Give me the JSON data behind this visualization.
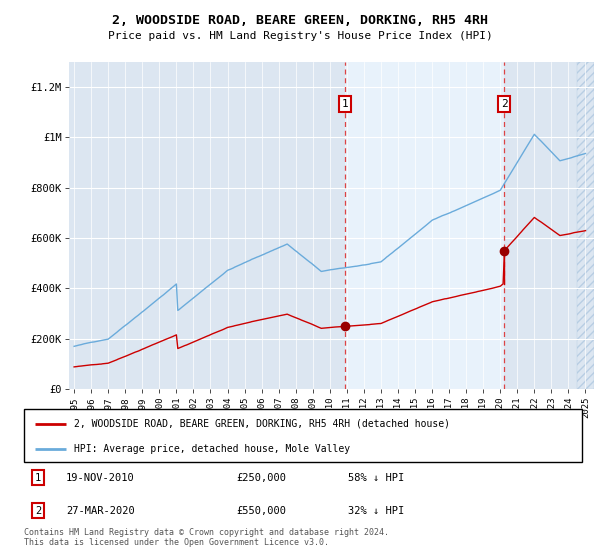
{
  "title": "2, WOODSIDE ROAD, BEARE GREEN, DORKING, RH5 4RH",
  "subtitle": "Price paid vs. HM Land Registry's House Price Index (HPI)",
  "hpi_label": "HPI: Average price, detached house, Mole Valley",
  "property_label": "2, WOODSIDE ROAD, BEARE GREEN, DORKING, RH5 4RH (detached house)",
  "footer": "Contains HM Land Registry data © Crown copyright and database right 2024.\nThis data is licensed under the Open Government Licence v3.0.",
  "sale1": {
    "label": "1",
    "date": "19-NOV-2010",
    "price": 250000,
    "pct": "58% ↓ HPI",
    "year": 2010.88
  },
  "sale2": {
    "label": "2",
    "date": "27-MAR-2020",
    "price": 550000,
    "pct": "32% ↓ HPI",
    "year": 2020.23
  },
  "hpi_color": "#6aabdb",
  "property_color": "#cc0000",
  "background_plot": "#dce6f1",
  "background_highlight": "#e8f2fb",
  "grid_color": "#ffffff",
  "ylim": [
    0,
    1300000
  ],
  "xlim_start": 1994.7,
  "xlim_end": 2025.5,
  "yticks": [
    0,
    200000,
    400000,
    600000,
    800000,
    1000000,
    1200000
  ],
  "ytick_labels": [
    "£0",
    "£200K",
    "£400K",
    "£600K",
    "£800K",
    "£1M",
    "£1.2M"
  ],
  "xtick_years": [
    1995,
    1996,
    1997,
    1998,
    1999,
    2000,
    2001,
    2002,
    2003,
    2004,
    2005,
    2006,
    2007,
    2008,
    2009,
    2010,
    2011,
    2012,
    2013,
    2014,
    2015,
    2016,
    2017,
    2018,
    2019,
    2020,
    2021,
    2022,
    2023,
    2024,
    2025
  ]
}
